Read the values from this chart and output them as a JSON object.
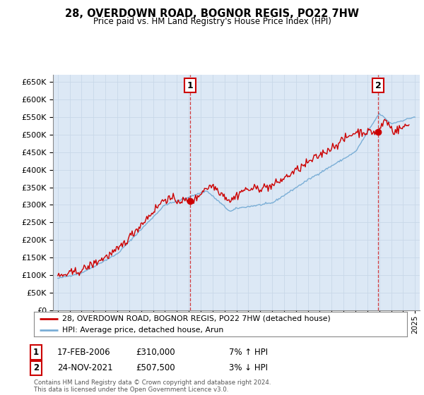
{
  "title": "28, OVERDOWN ROAD, BOGNOR REGIS, PO22 7HW",
  "subtitle": "Price paid vs. HM Land Registry's House Price Index (HPI)",
  "legend_line1": "28, OVERDOWN ROAD, BOGNOR REGIS, PO22 7HW (detached house)",
  "legend_line2": "HPI: Average price, detached house, Arun",
  "sale1_label": "1",
  "sale1_date": "17-FEB-2006",
  "sale1_price": "£310,000",
  "sale1_hpi": "7% ↑ HPI",
  "sale2_label": "2",
  "sale2_date": "24-NOV-2021",
  "sale2_price": "£507,500",
  "sale2_hpi": "3% ↓ HPI",
  "footer": "Contains HM Land Registry data © Crown copyright and database right 2024.\nThis data is licensed under the Open Government Licence v3.0.",
  "red_color": "#cc0000",
  "blue_color": "#7aaed6",
  "grid_color": "#c8d8e8",
  "bg_color": "#dce8f5",
  "background_color": "#ffffff",
  "sale1_x": 2006.12,
  "sale1_y": 310000,
  "sale2_x": 2021.9,
  "sale2_y": 507500,
  "ylim": [
    0,
    670000
  ],
  "xlim_start": 1994.6,
  "xlim_end": 2025.4
}
